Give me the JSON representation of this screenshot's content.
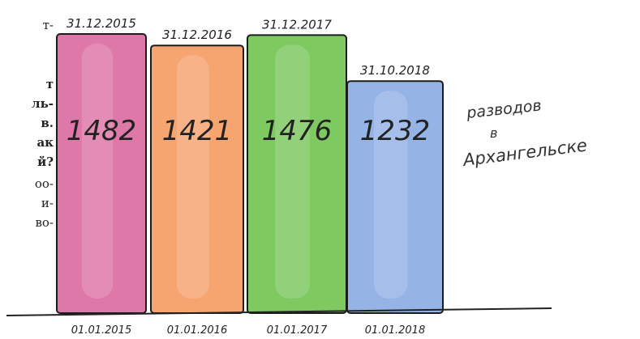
{
  "side_text": {
    "lines": [
      {
        "text": "т-",
        "bold": false
      },
      {
        "text": "т",
        "bold": true
      },
      {
        "text": "ль-",
        "bold": true
      },
      {
        "text": "в.",
        "bold": true
      },
      {
        "text": "ак",
        "bold": true
      },
      {
        "text": "й?",
        "bold": true
      },
      {
        "text": "оо-",
        "bold": false
      },
      {
        "text": "и-",
        "bold": false
      },
      {
        "text": "во-",
        "bold": false
      }
    ]
  },
  "chart_data": {
    "type": "bar",
    "title": "",
    "xlabel": "",
    "ylabel": "",
    "side_label_lines": [
      "разводов",
      "в",
      "Архангельске"
    ],
    "ylim": [
      0,
      1550
    ],
    "grid": false,
    "legend": "none",
    "bars": [
      {
        "value": 1482,
        "value_label": "1482",
        "top_label": "31.12.2015",
        "bottom_label": "01.01.2015",
        "color": "#d9659d"
      },
      {
        "value": 1421,
        "value_label": "1421",
        "top_label": "31.12.2016",
        "bottom_label": "01.01.2016",
        "color": "#f5975c"
      },
      {
        "value": 1476,
        "value_label": "1476",
        "top_label": "31.12.2017",
        "bottom_label": "01.01.2017",
        "color": "#6cc24a"
      },
      {
        "value": 1232,
        "value_label": "1232",
        "top_label": "31.10.2018",
        "bottom_label": "01.01.2018",
        "color": "#88a9e3"
      }
    ]
  }
}
